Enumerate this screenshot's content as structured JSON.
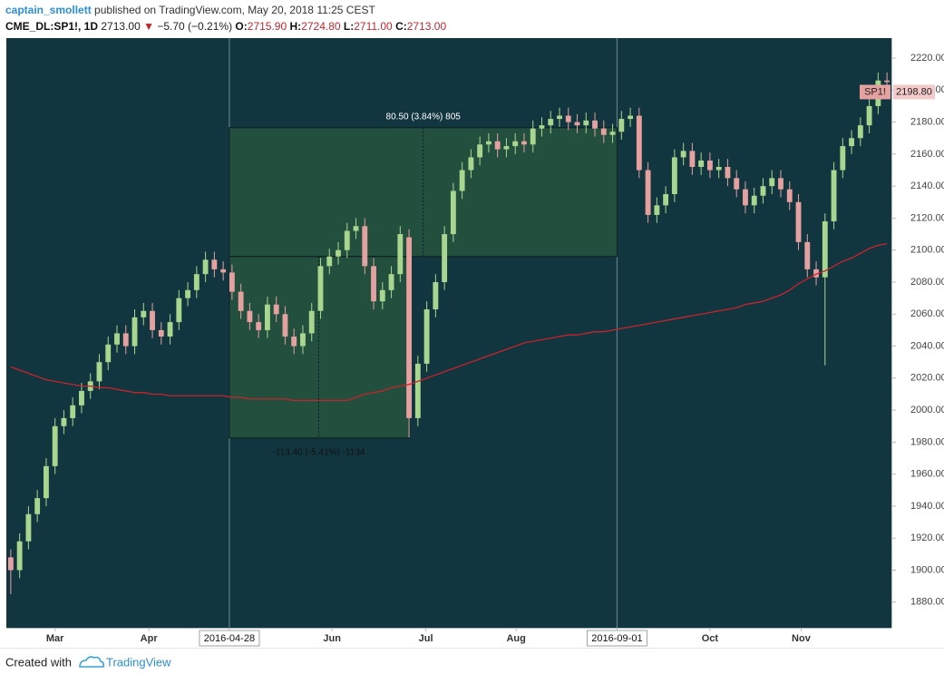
{
  "header": {
    "author": "captain_smollett",
    "published": "published on TradingView.com, May 20, 2018 11:25 CEST",
    "symbol": "CME_DL:SP1!, 1D",
    "price": "2713.00",
    "arrow": "▼",
    "change": "−5.70 (−0.21%)",
    "open_label": "O:",
    "open": "2715.90",
    "high_label": "H:",
    "high": "2724.80",
    "low_label": "L:",
    "low": "2711.00",
    "close_label": "C:",
    "close": "2713.00"
  },
  "footer": {
    "created": "Created with",
    "brand": "TradingView"
  },
  "chart_data": {
    "type": "candlestick",
    "up_color": "#a9d68f",
    "down_color": "#e5a0a0",
    "ma_color": "#c8232b",
    "xlim": [
      0,
      100
    ],
    "ylim": [
      1864,
      2232.5
    ],
    "yticks": [
      {
        "value": 1880,
        "label": "1880.00"
      },
      {
        "value": 1900,
        "label": "1900.00"
      },
      {
        "value": 1920,
        "label": "1920.00"
      },
      {
        "value": 1940,
        "label": "1940.00"
      },
      {
        "value": 1960,
        "label": "1960.00"
      },
      {
        "value": 1980,
        "label": "1980.00"
      },
      {
        "value": 2000,
        "label": "2000.00"
      },
      {
        "value": 2020,
        "label": "2020.00"
      },
      {
        "value": 2040,
        "label": "2040.00"
      },
      {
        "value": 2060,
        "label": "2060.00"
      },
      {
        "value": 2080,
        "label": "2080.00"
      },
      {
        "value": 2100,
        "label": "2100.00"
      },
      {
        "value": 2120,
        "label": "2120.00"
      },
      {
        "value": 2140,
        "label": "2140.00"
      },
      {
        "value": 2160,
        "label": "2160.00"
      },
      {
        "value": 2180,
        "label": "2180.00"
      },
      {
        "value": 2200,
        "label": "2200.00"
      },
      {
        "value": 2220,
        "label": "2220.00"
      }
    ],
    "xticks": [
      {
        "value": 5.5,
        "label": "Mar"
      },
      {
        "value": 16.1,
        "label": "Apr"
      },
      {
        "value": 25.2,
        "label": "2016-04-28",
        "highlight": true
      },
      {
        "value": 36.8,
        "label": "Jun"
      },
      {
        "value": 47.4,
        "label": "Jul"
      },
      {
        "value": 57.6,
        "label": "Aug"
      },
      {
        "value": 69,
        "label": "2016-09-01",
        "highlight": true
      },
      {
        "value": 79.5,
        "label": "Oct"
      },
      {
        "value": 89.8,
        "label": "Nov"
      }
    ],
    "open": [
      1908,
      1900,
      1918,
      1935,
      1945,
      1965,
      1990,
      1995,
      2003,
      2012,
      2018,
      2030,
      2041,
      2048,
      2040,
      2058,
      2062,
      2050,
      2046,
      2055,
      2070,
      2075,
      2085,
      2094,
      2088,
      2086,
      2074,
      2062,
      2055,
      2050,
      2066,
      2060,
      2046,
      2040,
      2048,
      2062,
      2090,
      2096,
      2100,
      2112,
      2115,
      2090,
      2068,
      2075,
      2085,
      2108,
      1995,
      2029,
      2063,
      2080,
      2110,
      2137,
      2150,
      2158,
      2166,
      2168,
      2163,
      2165,
      2168,
      2166,
      2176,
      2178,
      2182,
      2184,
      2180,
      2178,
      2181,
      2176,
      2172,
      2174,
      2182,
      2184,
      2150,
      2122,
      2128,
      2135,
      2158,
      2162,
      2152,
      2156,
      2150,
      2152,
      2145,
      2138,
      2128,
      2134,
      2140,
      2145,
      2138,
      2130,
      2105,
      2088,
      2083,
      2118,
      2150,
      2165,
      2170,
      2178,
      2190,
      2206
    ],
    "high": [
      1913,
      1923,
      1940,
      1950,
      1970,
      1995,
      2000,
      2008,
      2017,
      2023,
      2035,
      2046,
      2053,
      2053,
      2063,
      2067,
      2067,
      2055,
      2060,
      2075,
      2080,
      2090,
      2099,
      2099,
      2093,
      2091,
      2079,
      2067,
      2060,
      2071,
      2071,
      2065,
      2051,
      2053,
      2067,
      2095,
      2101,
      2105,
      2117,
      2120,
      2120,
      2095,
      2080,
      2090,
      2115,
      2113,
      2034,
      2068,
      2085,
      2115,
      2142,
      2155,
      2163,
      2171,
      2173,
      2173,
      2170,
      2173,
      2173,
      2181,
      2183,
      2187,
      2189,
      2189,
      2185,
      2186,
      2186,
      2181,
      2179,
      2187,
      2189,
      2189,
      2155,
      2133,
      2140,
      2163,
      2167,
      2167,
      2161,
      2161,
      2157,
      2157,
      2150,
      2143,
      2139,
      2145,
      2150,
      2150,
      2143,
      2135,
      2110,
      2093,
      2123,
      2155,
      2170,
      2175,
      2183,
      2195,
      2211,
      2211
    ],
    "low": [
      1885,
      1895,
      1913,
      1930,
      1940,
      1960,
      1985,
      1990,
      1998,
      2007,
      2013,
      2025,
      2036,
      2035,
      2035,
      2053,
      2045,
      2041,
      2041,
      2050,
      2065,
      2070,
      2080,
      2083,
      2081,
      2069,
      2057,
      2050,
      2045,
      2045,
      2055,
      2041,
      2035,
      2035,
      2043,
      2057,
      2085,
      2091,
      2095,
      2107,
      2085,
      2063,
      2063,
      2070,
      2080,
      1983,
      1990,
      2024,
      2058,
      2075,
      2105,
      2132,
      2145,
      2153,
      2161,
      2158,
      2158,
      2160,
      2161,
      2161,
      2171,
      2173,
      2177,
      2175,
      2173,
      2173,
      2171,
      2167,
      2167,
      2169,
      2177,
      2145,
      2117,
      2117,
      2123,
      2130,
      2153,
      2147,
      2147,
      2145,
      2145,
      2140,
      2133,
      2123,
      2123,
      2129,
      2135,
      2133,
      2125,
      2100,
      2083,
      2078,
      2028,
      2113,
      2145,
      2160,
      2165,
      2173,
      2185,
      2200
    ],
    "close": [
      1900,
      1918,
      1935,
      1945,
      1965,
      1990,
      1995,
      2003,
      2012,
      2018,
      2030,
      2041,
      2048,
      2040,
      2058,
      2062,
      2050,
      2046,
      2055,
      2070,
      2075,
      2085,
      2094,
      2088,
      2086,
      2074,
      2062,
      2055,
      2050,
      2066,
      2060,
      2046,
      2040,
      2048,
      2062,
      2090,
      2096,
      2100,
      2112,
      2115,
      2090,
      2068,
      2075,
      2085,
      2110,
      1995,
      2029,
      2063,
      2080,
      2110,
      2137,
      2150,
      2158,
      2166,
      2168,
      2163,
      2165,
      2168,
      2166,
      2176,
      2178,
      2182,
      2184,
      2180,
      2178,
      2181,
      2176,
      2172,
      2174,
      2182,
      2184,
      2150,
      2122,
      2128,
      2135,
      2158,
      2162,
      2152,
      2156,
      2150,
      2152,
      2145,
      2138,
      2128,
      2134,
      2140,
      2145,
      2138,
      2130,
      2105,
      2088,
      2083,
      2118,
      2150,
      2165,
      2170,
      2178,
      2190,
      2206,
      2205
    ],
    "ma": [
      2027,
      2025,
      2023,
      2021,
      2019,
      2018,
      2017,
      2016,
      2015,
      2015,
      2014,
      2014,
      2013,
      2012,
      2011,
      2011,
      2010,
      2010,
      2009,
      2009,
      2009,
      2009,
      2009,
      2009,
      2009,
      2008,
      2008,
      2007,
      2007,
      2007,
      2007,
      2007,
      2006,
      2006,
      2006,
      2006,
      2006,
      2006,
      2006,
      2008,
      2010,
      2011,
      2012,
      2014,
      2015,
      2016,
      2018,
      2020,
      2022,
      2024,
      2026,
      2028,
      2030,
      2032,
      2034,
      2036,
      2038,
      2040,
      2042,
      2043,
      2044,
      2045,
      2046,
      2047,
      2047,
      2048,
      2049,
      2049,
      2050,
      2051,
      2052,
      2053,
      2054,
      2055,
      2056,
      2057,
      2058,
      2059,
      2060,
      2061,
      2062,
      2063,
      2064,
      2066,
      2067,
      2068,
      2070,
      2072,
      2075,
      2079,
      2082,
      2085,
      2087,
      2090,
      2093,
      2095,
      2098,
      2101,
      2103,
      2104
    ],
    "measures": [
      {
        "label": "80.50 (3.84%) 805",
        "x": [
          25.2,
          69
        ],
        "y": [
          2096,
          2176.5
        ],
        "arrow_x": 47.1
      },
      {
        "label": "-113.40 (-5.41%) -1134",
        "x": [
          25.2,
          45.5
        ],
        "y": [
          2096,
          1982.6
        ],
        "arrow_x": 35.3
      }
    ],
    "last_price": {
      "symbol": "SP1!",
      "value": 2198.8,
      "label": "2198.80"
    }
  }
}
